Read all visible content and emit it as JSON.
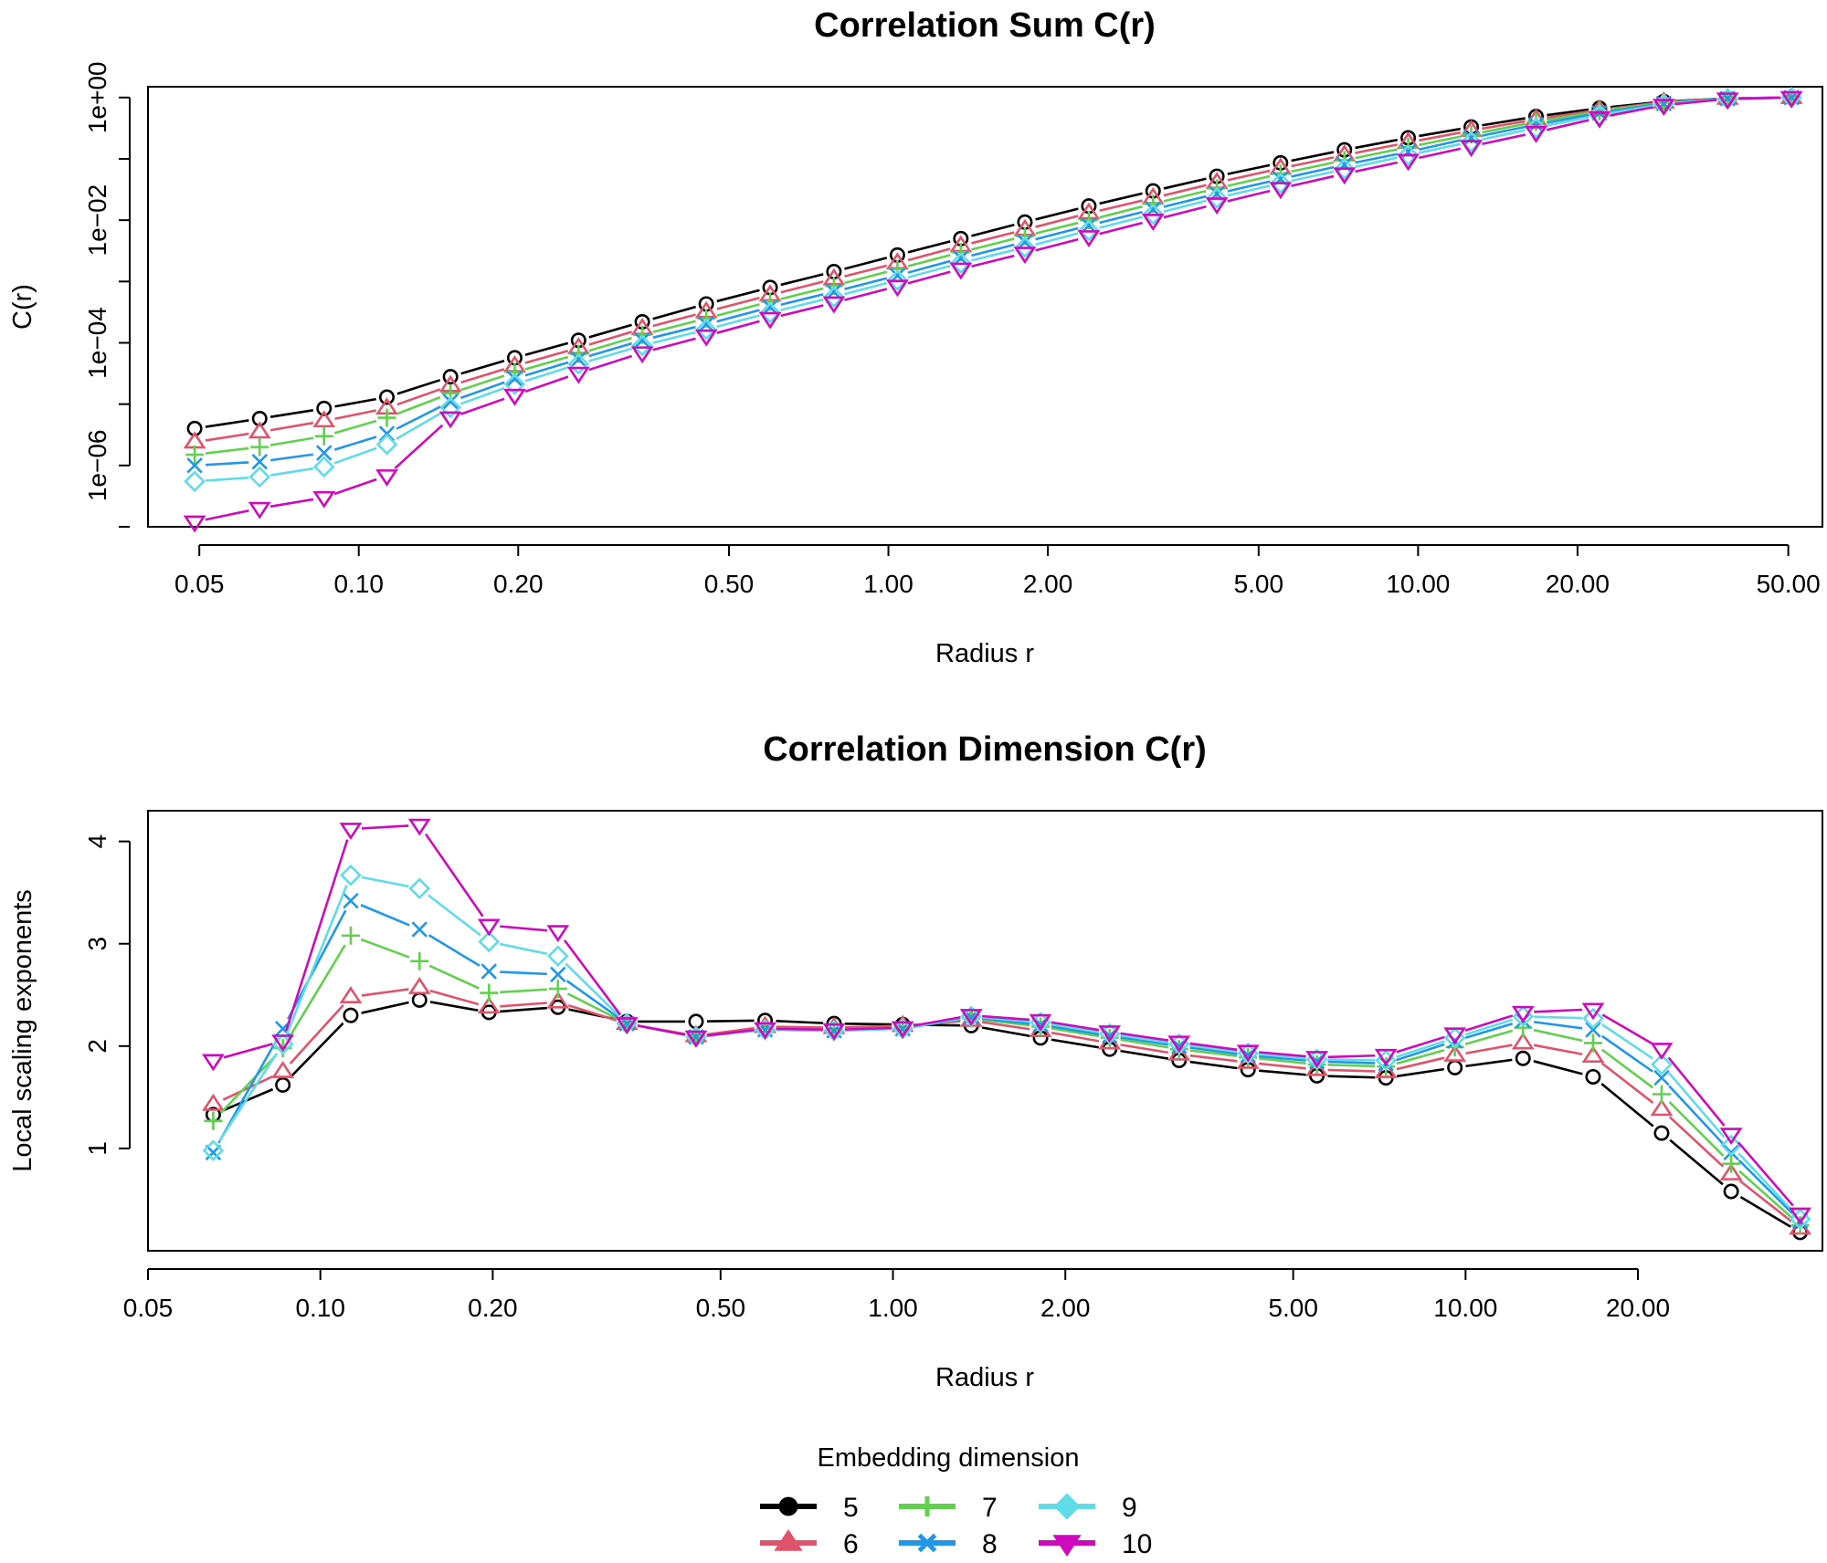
{
  "chart_data": [
    {
      "type": "line",
      "title": "Correlation Sum C(r)",
      "xlabel": "Radius r",
      "ylabel": "C(r)",
      "x_scale": "log",
      "y_scale": "log",
      "xlim": [
        0.04,
        58
      ],
      "ylim": [
        1e-07,
        1.5
      ],
      "x_ticks": [
        "0.05",
        "0.10",
        "0.20",
        "0.50",
        "1.00",
        "2.00",
        "5.00",
        "10.00",
        "20.00",
        "50.00"
      ],
      "y_ticks": [
        "1e−06",
        "1e−04",
        "1e−02",
        "1e+00"
      ],
      "x": [
        0.049,
        0.065,
        0.086,
        0.113,
        0.149,
        0.197,
        0.26,
        0.343,
        0.453,
        0.598,
        0.789,
        1.04,
        1.37,
        1.81,
        2.39,
        3.16,
        4.17,
        5.5,
        7.26,
        9.58,
        12.6,
        16.7,
        22.0,
        29.1,
        38.4,
        50.7
      ],
      "series": [
        {
          "name": "5",
          "values": [
            4e-06,
            5.8e-06,
            8.5e-06,
            1.3e-05,
            2.8e-05,
            5.7e-05,
            0.00011,
            0.00022,
            0.00043,
            0.0008,
            0.00145,
            0.0027,
            0.005,
            0.0093,
            0.017,
            0.03,
            0.052,
            0.086,
            0.14,
            0.22,
            0.33,
            0.49,
            0.67,
            0.86,
            0.97,
            1.0
          ]
        },
        {
          "name": "6",
          "values": [
            2.4e-06,
            3.5e-06,
            5.3e-06,
            8.6e-06,
            2e-05,
            4.2e-05,
            8.3e-05,
            0.00017,
            0.00032,
            0.0006,
            0.0011,
            0.002,
            0.0038,
            0.007,
            0.013,
            0.023,
            0.041,
            0.07,
            0.115,
            0.185,
            0.29,
            0.44,
            0.63,
            0.84,
            0.97,
            1.0
          ]
        },
        {
          "name": "7",
          "values": [
            1.5e-06,
            2e-06,
            3e-06,
            6e-06,
            1.5e-05,
            3.3e-05,
            6.6e-05,
            0.000135,
            0.00025,
            0.00047,
            0.00085,
            0.0016,
            0.003,
            0.0055,
            0.01,
            0.0185,
            0.033,
            0.057,
            0.095,
            0.155,
            0.25,
            0.4,
            0.6,
            0.82,
            0.96,
            1.0
          ]
        },
        {
          "name": "8",
          "values": [
            1e-06,
            1.15e-06,
            1.6e-06,
            3.3e-06,
            1.1e-05,
            2.6e-05,
            5.4e-05,
            0.00011,
            0.0002,
            0.00038,
            0.00068,
            0.00125,
            0.0024,
            0.0044,
            0.0082,
            0.015,
            0.027,
            0.047,
            0.08,
            0.13,
            0.22,
            0.36,
            0.56,
            0.8,
            0.96,
            1.0
          ]
        },
        {
          "name": "9",
          "values": [
            5.5e-07,
            6.5e-07,
            9.5e-07,
            2.2e-06,
            8.8e-06,
            2.1e-05,
            4.5e-05,
            9e-05,
            0.000165,
            0.00031,
            0.00056,
            0.00105,
            0.002,
            0.0036,
            0.0068,
            0.0125,
            0.023,
            0.04,
            0.068,
            0.115,
            0.19,
            0.32,
            0.52,
            0.78,
            0.95,
            1.0
          ]
        },
        {
          "name": "10",
          "values": [
            1.2e-07,
            2e-07,
            3e-07,
            6.8e-07,
            6e-06,
            1.4e-05,
            3.2e-05,
            6.9e-05,
            0.00013,
            0.00025,
            0.00045,
            0.00084,
            0.0016,
            0.0029,
            0.0054,
            0.01,
            0.0185,
            0.033,
            0.057,
            0.095,
            0.16,
            0.27,
            0.47,
            0.75,
            0.95,
            1.0
          ]
        }
      ]
    },
    {
      "type": "line",
      "title": "Correlation Dimension C(r)",
      "xlabel": "Radius r",
      "ylabel": "Local scaling exponents",
      "x_scale": "log",
      "xlim": [
        0.05,
        42
      ],
      "ylim": [
        0.0,
        4.3
      ],
      "x_ticks": [
        "0.05",
        "0.10",
        "0.20",
        "0.50",
        "1.00",
        "2.00",
        "5.00",
        "10.00",
        "20.00"
      ],
      "y_ticks": [
        "1",
        "2",
        "3",
        "4"
      ],
      "x": [
        0.065,
        0.086,
        0.113,
        0.149,
        0.197,
        0.26,
        0.343,
        0.453,
        0.598,
        0.789,
        1.04,
        1.37,
        1.81,
        2.39,
        3.16,
        4.17,
        5.5,
        7.26,
        9.58,
        12.6,
        16.7,
        22.0,
        29.1,
        38.4
      ],
      "series": [
        {
          "name": "5",
          "values": [
            1.33,
            1.62,
            2.3,
            2.45,
            2.33,
            2.38,
            2.24,
            2.24,
            2.25,
            2.22,
            2.21,
            2.2,
            2.08,
            1.97,
            1.86,
            1.77,
            1.71,
            1.69,
            1.79,
            1.88,
            1.7,
            1.15,
            0.58,
            0.18
          ]
        },
        {
          "name": "6",
          "values": [
            1.43,
            1.75,
            2.48,
            2.57,
            2.38,
            2.43,
            2.22,
            2.1,
            2.19,
            2.18,
            2.2,
            2.25,
            2.15,
            2.03,
            1.92,
            1.84,
            1.77,
            1.75,
            1.91,
            2.03,
            1.9,
            1.38,
            0.75,
            0.22
          ]
        },
        {
          "name": "7",
          "values": [
            1.27,
            1.98,
            3.08,
            2.83,
            2.52,
            2.56,
            2.22,
            2.09,
            2.17,
            2.16,
            2.18,
            2.27,
            2.19,
            2.08,
            1.97,
            1.89,
            1.82,
            1.8,
            1.99,
            2.18,
            2.03,
            1.53,
            0.85,
            0.25
          ]
        },
        {
          "name": "8",
          "values": [
            0.96,
            2.17,
            3.42,
            3.14,
            2.73,
            2.7,
            2.22,
            2.09,
            2.16,
            2.15,
            2.17,
            2.28,
            2.21,
            2.1,
            2.0,
            1.91,
            1.85,
            1.83,
            2.05,
            2.25,
            2.16,
            1.69,
            0.96,
            0.29
          ]
        },
        {
          "name": "9",
          "values": [
            0.98,
            2.02,
            3.67,
            3.54,
            3.02,
            2.88,
            2.22,
            2.09,
            2.16,
            2.15,
            2.17,
            2.29,
            2.23,
            2.12,
            2.02,
            1.93,
            1.87,
            1.86,
            2.08,
            2.29,
            2.27,
            1.82,
            1.03,
            0.31
          ]
        },
        {
          "name": "10",
          "values": [
            1.86,
            2.05,
            4.12,
            4.16,
            3.18,
            3.12,
            2.22,
            2.09,
            2.17,
            2.16,
            2.18,
            2.3,
            2.25,
            2.14,
            2.04,
            1.95,
            1.89,
            1.91,
            2.12,
            2.33,
            2.36,
            1.97,
            1.14,
            0.36
          ]
        }
      ]
    }
  ],
  "legend": {
    "title": "Embedding dimension",
    "entries": [
      {
        "label": "5",
        "color": "#000000",
        "marker": "circle"
      },
      {
        "label": "6",
        "color": "#DF536B",
        "marker": "triangle-up"
      },
      {
        "label": "7",
        "color": "#61D04F",
        "marker": "plus"
      },
      {
        "label": "8",
        "color": "#2297E6",
        "marker": "cross"
      },
      {
        "label": "9",
        "color": "#5FDCE8",
        "marker": "diamond"
      },
      {
        "label": "10",
        "color": "#CD0BBC",
        "marker": "triangle-down"
      }
    ]
  }
}
